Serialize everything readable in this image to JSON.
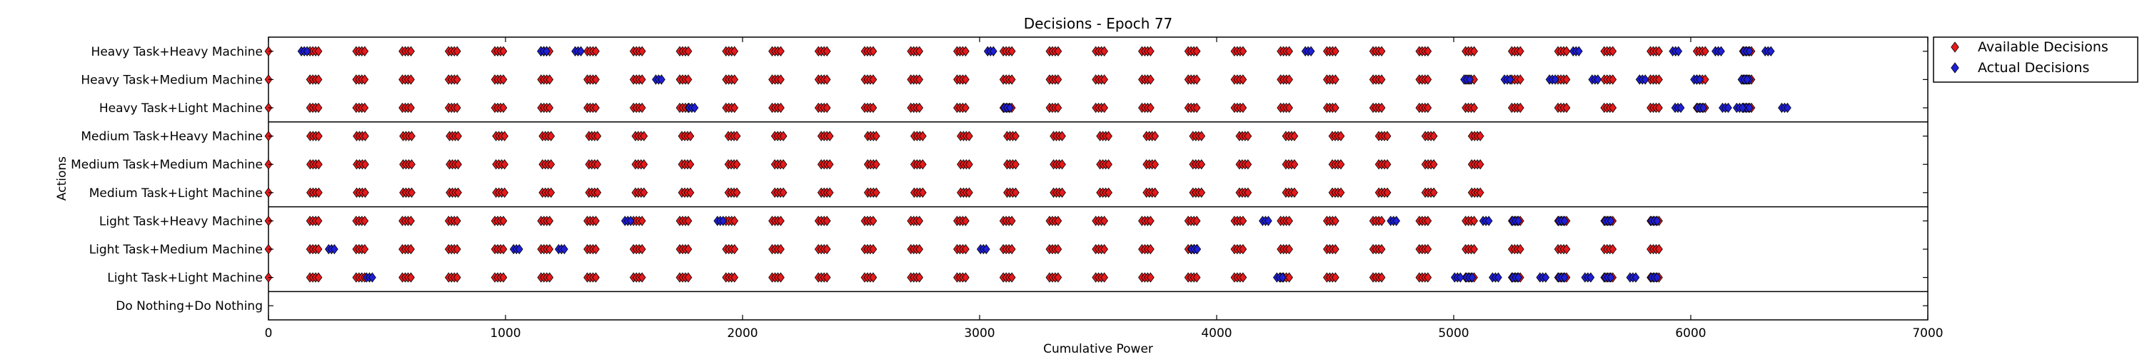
{
  "chart_data": {
    "type": "scatter",
    "title": "Decisions - Epoch 77",
    "xlabel": "Cumulative Power",
    "ylabel": "Actions",
    "xlim": [
      0,
      7000
    ],
    "xticks": [
      "0",
      "1000",
      "2000",
      "3000",
      "4000",
      "5000",
      "6000",
      "7000"
    ],
    "categories": [
      "Heavy Task+Heavy Machine",
      "Heavy Task+Medium Machine",
      "Heavy Task+Light Machine",
      "Medium Task+Heavy Machine",
      "Medium Task+Medium Machine",
      "Medium Task+Light Machine",
      "Light Task+Heavy Machine",
      "Light Task+Medium Machine",
      "Light Task+Light Machine",
      "Do Nothing+Do Nothing"
    ],
    "group_separators_after": [
      2,
      5,
      8
    ],
    "legend": {
      "placement": "outside-top-right"
    },
    "series": [
      {
        "name": "Available Decisions",
        "color": "#e41a1c"
      },
      {
        "name": "Actual Decisions",
        "color": "#1f1fd6"
      }
    ],
    "rows": [
      {
        "start": 0,
        "step": 195,
        "count": 33,
        "actual_after": 6200,
        "actual_points": [
          155,
          1165,
          1310,
          3050,
          4390,
          5520,
          5940,
          6120,
          6330
        ]
      },
      {
        "start": 0,
        "step": 195,
        "count": 33,
        "actual_after": 6200,
        "actual_points": [
          1650,
          5060,
          5230,
          5420,
          5600,
          5800,
          6030,
          6230
        ]
      },
      {
        "start": 0,
        "step": 195,
        "count": 33,
        "actual_after": 5950,
        "actual_points": [
          1790,
          3120,
          5950,
          6150,
          6210,
          6400
        ]
      },
      {
        "start": 0,
        "step": 196,
        "count": 27,
        "actual_after": 0,
        "actual_points": []
      },
      {
        "start": 0,
        "step": 196,
        "count": 27,
        "actual_after": 0,
        "actual_points": []
      },
      {
        "start": 0,
        "step": 196,
        "count": 27,
        "actual_after": 0,
        "actual_points": []
      },
      {
        "start": 0,
        "step": 195,
        "count": 31,
        "actual_after": 5100,
        "actual_points": [
          1520,
          1910,
          4210,
          4750,
          5140
        ]
      },
      {
        "start": 0,
        "step": 195,
        "count": 31,
        "actual_after": 0,
        "actual_points": [
          270,
          1050,
          1240,
          3020,
          3910
        ]
      },
      {
        "start": 0,
        "step": 195,
        "count": 31,
        "actual_after": 5020,
        "actual_points": [
          430,
          4270,
          5020,
          5180,
          5380,
          5570,
          5760
        ]
      },
      {
        "start": 0,
        "step": 0,
        "count": 0,
        "actual_after": 0,
        "actual_points": []
      }
    ]
  }
}
